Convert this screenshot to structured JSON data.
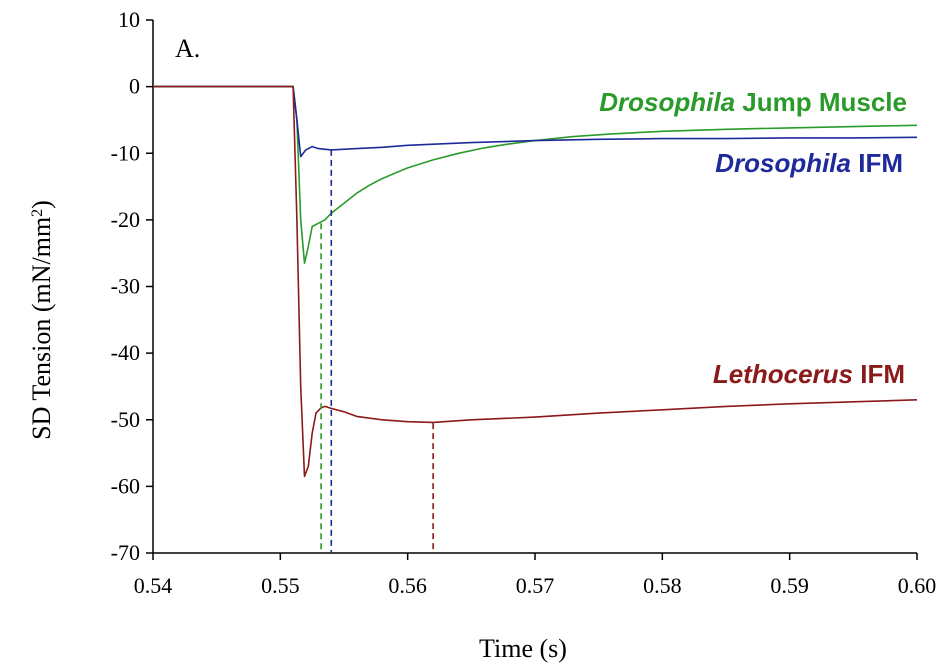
{
  "chart_data": {
    "type": "line",
    "panel_label": "A.",
    "xlabel": "Time (s)",
    "ylabel_main": "SD Tension (mN/mm",
    "ylabel_sup": "2",
    "ylabel_close": ")",
    "xlim": [
      0.54,
      0.6
    ],
    "ylim": [
      -70,
      10
    ],
    "xticks": [
      0.54,
      0.55,
      0.56,
      0.57,
      0.58,
      0.59,
      0.6
    ],
    "xtick_labels": [
      "0.54",
      "0.55",
      "0.56",
      "0.57",
      "0.58",
      "0.59",
      "0.60"
    ],
    "yticks": [
      10,
      0,
      -10,
      -20,
      -30,
      -40,
      -50,
      -60,
      -70
    ],
    "ytick_labels": [
      "10",
      "0",
      "-10",
      "-20",
      "-30",
      "-40",
      "-50",
      "-60",
      "-70"
    ],
    "grid": false,
    "series": [
      {
        "name_italic": "Drosophila",
        "name_rest": " Jump Muscle",
        "color": "#2a9a2a",
        "x": [
          0.54,
          0.551,
          0.5513,
          0.5516,
          0.5519,
          0.5522,
          0.5525,
          0.553,
          0.5535,
          0.554,
          0.555,
          0.556,
          0.557,
          0.558,
          0.559,
          0.56,
          0.562,
          0.564,
          0.566,
          0.568,
          0.57,
          0.573,
          0.576,
          0.58,
          0.585,
          0.59,
          0.595,
          0.6
        ],
        "y": [
          0,
          0,
          -5,
          -20,
          -26.5,
          -24,
          -21,
          -20.5,
          -20,
          -19,
          -17.5,
          -16,
          -14.8,
          -13.8,
          -13,
          -12.2,
          -11,
          -10,
          -9.2,
          -8.6,
          -8.1,
          -7.5,
          -7.1,
          -6.7,
          -6.4,
          -6.2,
          -6.0,
          -5.8
        ]
      },
      {
        "name_italic": "Drosophila",
        "name_rest": " IFM",
        "color": "#1f2a9a",
        "x": [
          0.54,
          0.551,
          0.5513,
          0.5516,
          0.552,
          0.5525,
          0.553,
          0.554,
          0.556,
          0.558,
          0.56,
          0.565,
          0.57,
          0.575,
          0.58,
          0.585,
          0.59,
          0.595,
          0.6
        ],
        "y": [
          0,
          0,
          -5,
          -10.5,
          -9.5,
          -9,
          -9.3,
          -9.5,
          -9.3,
          -9.1,
          -8.8,
          -8.4,
          -8.1,
          -7.9,
          -7.8,
          -7.8,
          -7.7,
          -7.7,
          -7.6
        ]
      },
      {
        "name_italic": "Lethocerus",
        "name_rest": " IFM",
        "color": "#8b1a1a",
        "x": [
          0.54,
          0.551,
          0.5513,
          0.5516,
          0.5519,
          0.5522,
          0.5525,
          0.5528,
          0.5532,
          0.5535,
          0.554,
          0.555,
          0.556,
          0.558,
          0.56,
          0.562,
          0.565,
          0.57,
          0.575,
          0.58,
          0.585,
          0.59,
          0.595,
          0.6
        ],
        "y": [
          0,
          0,
          -20,
          -45,
          -58.5,
          -57,
          -52,
          -49,
          -48.2,
          -48,
          -48.3,
          -48.8,
          -49.5,
          -50.0,
          -50.3,
          -50.4,
          -50.0,
          -49.6,
          -49.0,
          -48.5,
          -48.0,
          -47.6,
          -47.3,
          -47.0
        ]
      }
    ],
    "markers": [
      {
        "color": "#2a9a2a",
        "x": 0.5532
      },
      {
        "color": "#1f2a9a",
        "x": 0.554
      },
      {
        "color": "#8b1a1a",
        "x": 0.562
      }
    ]
  }
}
